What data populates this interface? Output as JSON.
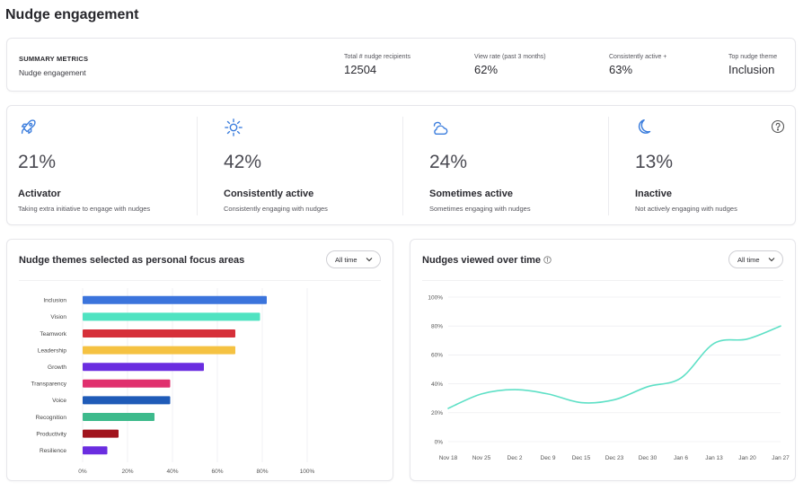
{
  "page": {
    "title": "Nudge engagement"
  },
  "summary": {
    "label": "SUMMARY METRICS",
    "sublabel": "Nudge engagement",
    "metrics": [
      {
        "label": "Total # nudge recipients",
        "value": "12504"
      },
      {
        "label": "View rate (past 3 months)",
        "value": "62%"
      },
      {
        "label": "Consistently active +",
        "value": "63%"
      },
      {
        "label": "Top nudge theme",
        "value": "Inclusion"
      }
    ]
  },
  "segments": [
    {
      "icon": "rocket-icon",
      "percent": "21%",
      "name": "Activator",
      "description": "Taking extra initiative to engage with nudges"
    },
    {
      "icon": "sun-icon",
      "percent": "42%",
      "name": "Consistently active",
      "description": "Consistently engaging with nudges"
    },
    {
      "icon": "cloud-sun-icon",
      "percent": "24%",
      "name": "Sometimes active",
      "description": "Sometimes engaging with nudges"
    },
    {
      "icon": "moon-icon",
      "percent": "13%",
      "name": "Inactive",
      "description": "Not actively engaging with nudges"
    }
  ],
  "colors": {
    "accent": "#3b7ddd",
    "line": "#5ee0c6",
    "grid": "#e8e8ec"
  },
  "themes_card": {
    "title": "Nudge themes selected as personal focus areas",
    "filter": "All time"
  },
  "trend_card": {
    "title": "Nudges viewed over time",
    "filter": "All time"
  },
  "chart_data": [
    {
      "type": "bar",
      "orientation": "horizontal",
      "title": "Nudge themes selected as personal focus areas",
      "categories": [
        "Inclusion",
        "Vision",
        "Teamwork",
        "Leadership",
        "Growth",
        "Transparency",
        "Voice",
        "Recognition",
        "Productivity",
        "Resilience"
      ],
      "values": [
        82,
        79,
        68,
        68,
        54,
        39,
        39,
        32,
        16,
        11
      ],
      "colors": [
        "#3b74dc",
        "#4fe3c1",
        "#d6303a",
        "#f5c242",
        "#6a2de0",
        "#e0306e",
        "#1f5bb8",
        "#3dba8c",
        "#a1141d",
        "#6a2de0"
      ],
      "xticks": [
        "0%",
        "20%",
        "40%",
        "60%",
        "80%",
        "100%"
      ],
      "xlim": [
        0,
        100
      ]
    },
    {
      "type": "line",
      "title": "Nudges viewed over time",
      "x": [
        "Nov 18",
        "Nov 25",
        "Dec 2",
        "Dec 9",
        "Dec 15",
        "Dec 23",
        "Dec 30",
        "Jan 6",
        "Jan 13",
        "Jan 20",
        "Jan 27"
      ],
      "values": [
        23,
        33,
        36,
        33,
        27,
        29,
        38,
        44,
        68,
        71,
        80
      ],
      "yticks": [
        "0%",
        "20%",
        "40%",
        "60%",
        "80%",
        "100%"
      ],
      "ylim": [
        0,
        100
      ]
    }
  ]
}
